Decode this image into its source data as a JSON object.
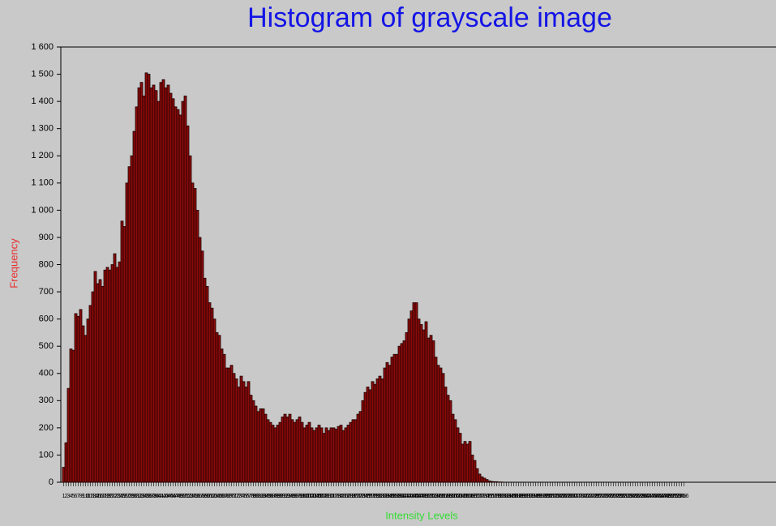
{
  "chart_data": {
    "type": "bar",
    "title": "Histogram of grayscale image",
    "x_label": "Intensity Levels",
    "y_label": "Frequency",
    "color": "#8b0a0a",
    "edge_color": "#1a0000",
    "title_color": "#1414e6",
    "x_label_color": "#33dd33",
    "y_label_color": "#e83030",
    "ylim": [
      0,
      1600
    ],
    "yticks": [
      0,
      100,
      200,
      300,
      400,
      500,
      600,
      700,
      800,
      900,
      {
        "value": 1000,
        "label": "1 000"
      },
      {
        "value": 1100,
        "label": "1 100"
      },
      {
        "value": 1200,
        "label": "1 200"
      },
      {
        "value": 1300,
        "label": "1 300"
      },
      {
        "value": 1400,
        "label": "1 400"
      },
      {
        "value": 1500,
        "label": "1 500"
      },
      {
        "value": 1600,
        "label": "1 600"
      }
    ],
    "categories": [
      1,
      2,
      3,
      4,
      5,
      6,
      7,
      8,
      9,
      10,
      11,
      12,
      13,
      14,
      15,
      16,
      17,
      18,
      19,
      20,
      21,
      22,
      23,
      24,
      25,
      26,
      27,
      28,
      29,
      30,
      31,
      32,
      33,
      34,
      35,
      36,
      37,
      38,
      39,
      40,
      41,
      42,
      43,
      44,
      45,
      46,
      47,
      48,
      49,
      50,
      51,
      52,
      53,
      54,
      55,
      56,
      57,
      58,
      59,
      60,
      61,
      62,
      63,
      64,
      65,
      66,
      67,
      68,
      69,
      70,
      71,
      72,
      73,
      74,
      75,
      76,
      77,
      78,
      79,
      80,
      81,
      82,
      83,
      84,
      85,
      86,
      87,
      88,
      89,
      90,
      91,
      92,
      93,
      94,
      95,
      96,
      97,
      98,
      99,
      100,
      101,
      102,
      103,
      104,
      105,
      106,
      107,
      108,
      109,
      110,
      111,
      112,
      113,
      114,
      115,
      116,
      117,
      118,
      119,
      120,
      121,
      122,
      123,
      124,
      125,
      126,
      127,
      128,
      129,
      130,
      131,
      132,
      133,
      134,
      135,
      136,
      137,
      138,
      139,
      140,
      141,
      142,
      143,
      144,
      145,
      146,
      147,
      148,
      149,
      150,
      151,
      152,
      153,
      154,
      155,
      156,
      157,
      158,
      159,
      160,
      161,
      162,
      163,
      164,
      165,
      166,
      167,
      168,
      169,
      170,
      171,
      172,
      173,
      174,
      175,
      176,
      177,
      178,
      179,
      180,
      181,
      182,
      183,
      184,
      185,
      186,
      187,
      188,
      189,
      190,
      191,
      192,
      193,
      194,
      195,
      196,
      197,
      198,
      199,
      200,
      201,
      202,
      203,
      204,
      205,
      206,
      207,
      208,
      209,
      210,
      211,
      212,
      213,
      214,
      215,
      216,
      217,
      218,
      219,
      220,
      221,
      222,
      223,
      224,
      225,
      226,
      227,
      228,
      229,
      230,
      231,
      232,
      233,
      234,
      235,
      236,
      237,
      238,
      239,
      240,
      241,
      242,
      243,
      244,
      245,
      246,
      247,
      248,
      249,
      250,
      251,
      252,
      253,
      254,
      255,
      256
    ],
    "values": [
      55,
      145,
      345,
      490,
      485,
      620,
      610,
      635,
      575,
      540,
      600,
      650,
      700,
      775,
      730,
      745,
      720,
      780,
      790,
      780,
      800,
      840,
      790,
      810,
      960,
      940,
      1100,
      1160,
      1200,
      1290,
      1380,
      1450,
      1470,
      1420,
      1505,
      1500,
      1450,
      1460,
      1440,
      1400,
      1470,
      1480,
      1450,
      1460,
      1430,
      1410,
      1380,
      1370,
      1350,
      1400,
      1420,
      1310,
      1200,
      1100,
      1080,
      1000,
      900,
      850,
      750,
      720,
      660,
      640,
      600,
      550,
      540,
      490,
      470,
      420,
      420,
      430,
      400,
      380,
      350,
      390,
      370,
      350,
      370,
      320,
      300,
      280,
      260,
      270,
      270,
      250,
      230,
      220,
      210,
      200,
      210,
      220,
      240,
      250,
      240,
      250,
      230,
      220,
      230,
      240,
      220,
      200,
      210,
      220,
      200,
      190,
      200,
      210,
      200,
      180,
      200,
      190,
      200,
      200,
      195,
      205,
      210,
      190,
      200,
      210,
      220,
      230,
      230,
      250,
      260,
      300,
      330,
      350,
      340,
      370,
      360,
      380,
      390,
      380,
      420,
      440,
      430,
      460,
      470,
      470,
      500,
      510,
      520,
      550,
      600,
      630,
      660,
      660,
      600,
      580,
      560,
      590,
      530,
      540,
      520,
      460,
      430,
      420,
      400,
      350,
      320,
      300,
      250,
      230,
      200,
      180,
      140,
      150,
      140,
      150,
      100,
      80,
      50,
      30,
      20,
      15,
      10,
      5,
      3,
      2,
      2,
      1,
      1,
      0,
      0,
      0,
      0,
      0,
      0,
      0,
      0,
      0,
      0,
      0,
      0,
      0,
      0,
      0,
      0,
      0,
      0,
      0,
      0,
      0,
      0,
      0,
      0,
      0,
      0,
      0,
      0,
      0,
      0,
      0,
      0,
      0,
      0,
      0,
      0,
      0,
      0,
      0,
      0,
      0,
      0,
      0,
      0,
      0,
      0,
      0,
      0,
      0,
      0,
      0,
      0,
      0,
      0,
      0,
      0,
      0,
      0,
      0,
      0,
      0,
      0,
      0,
      0,
      0,
      0,
      0,
      0,
      0,
      0,
      0,
      0,
      0,
      0,
      0
    ]
  }
}
